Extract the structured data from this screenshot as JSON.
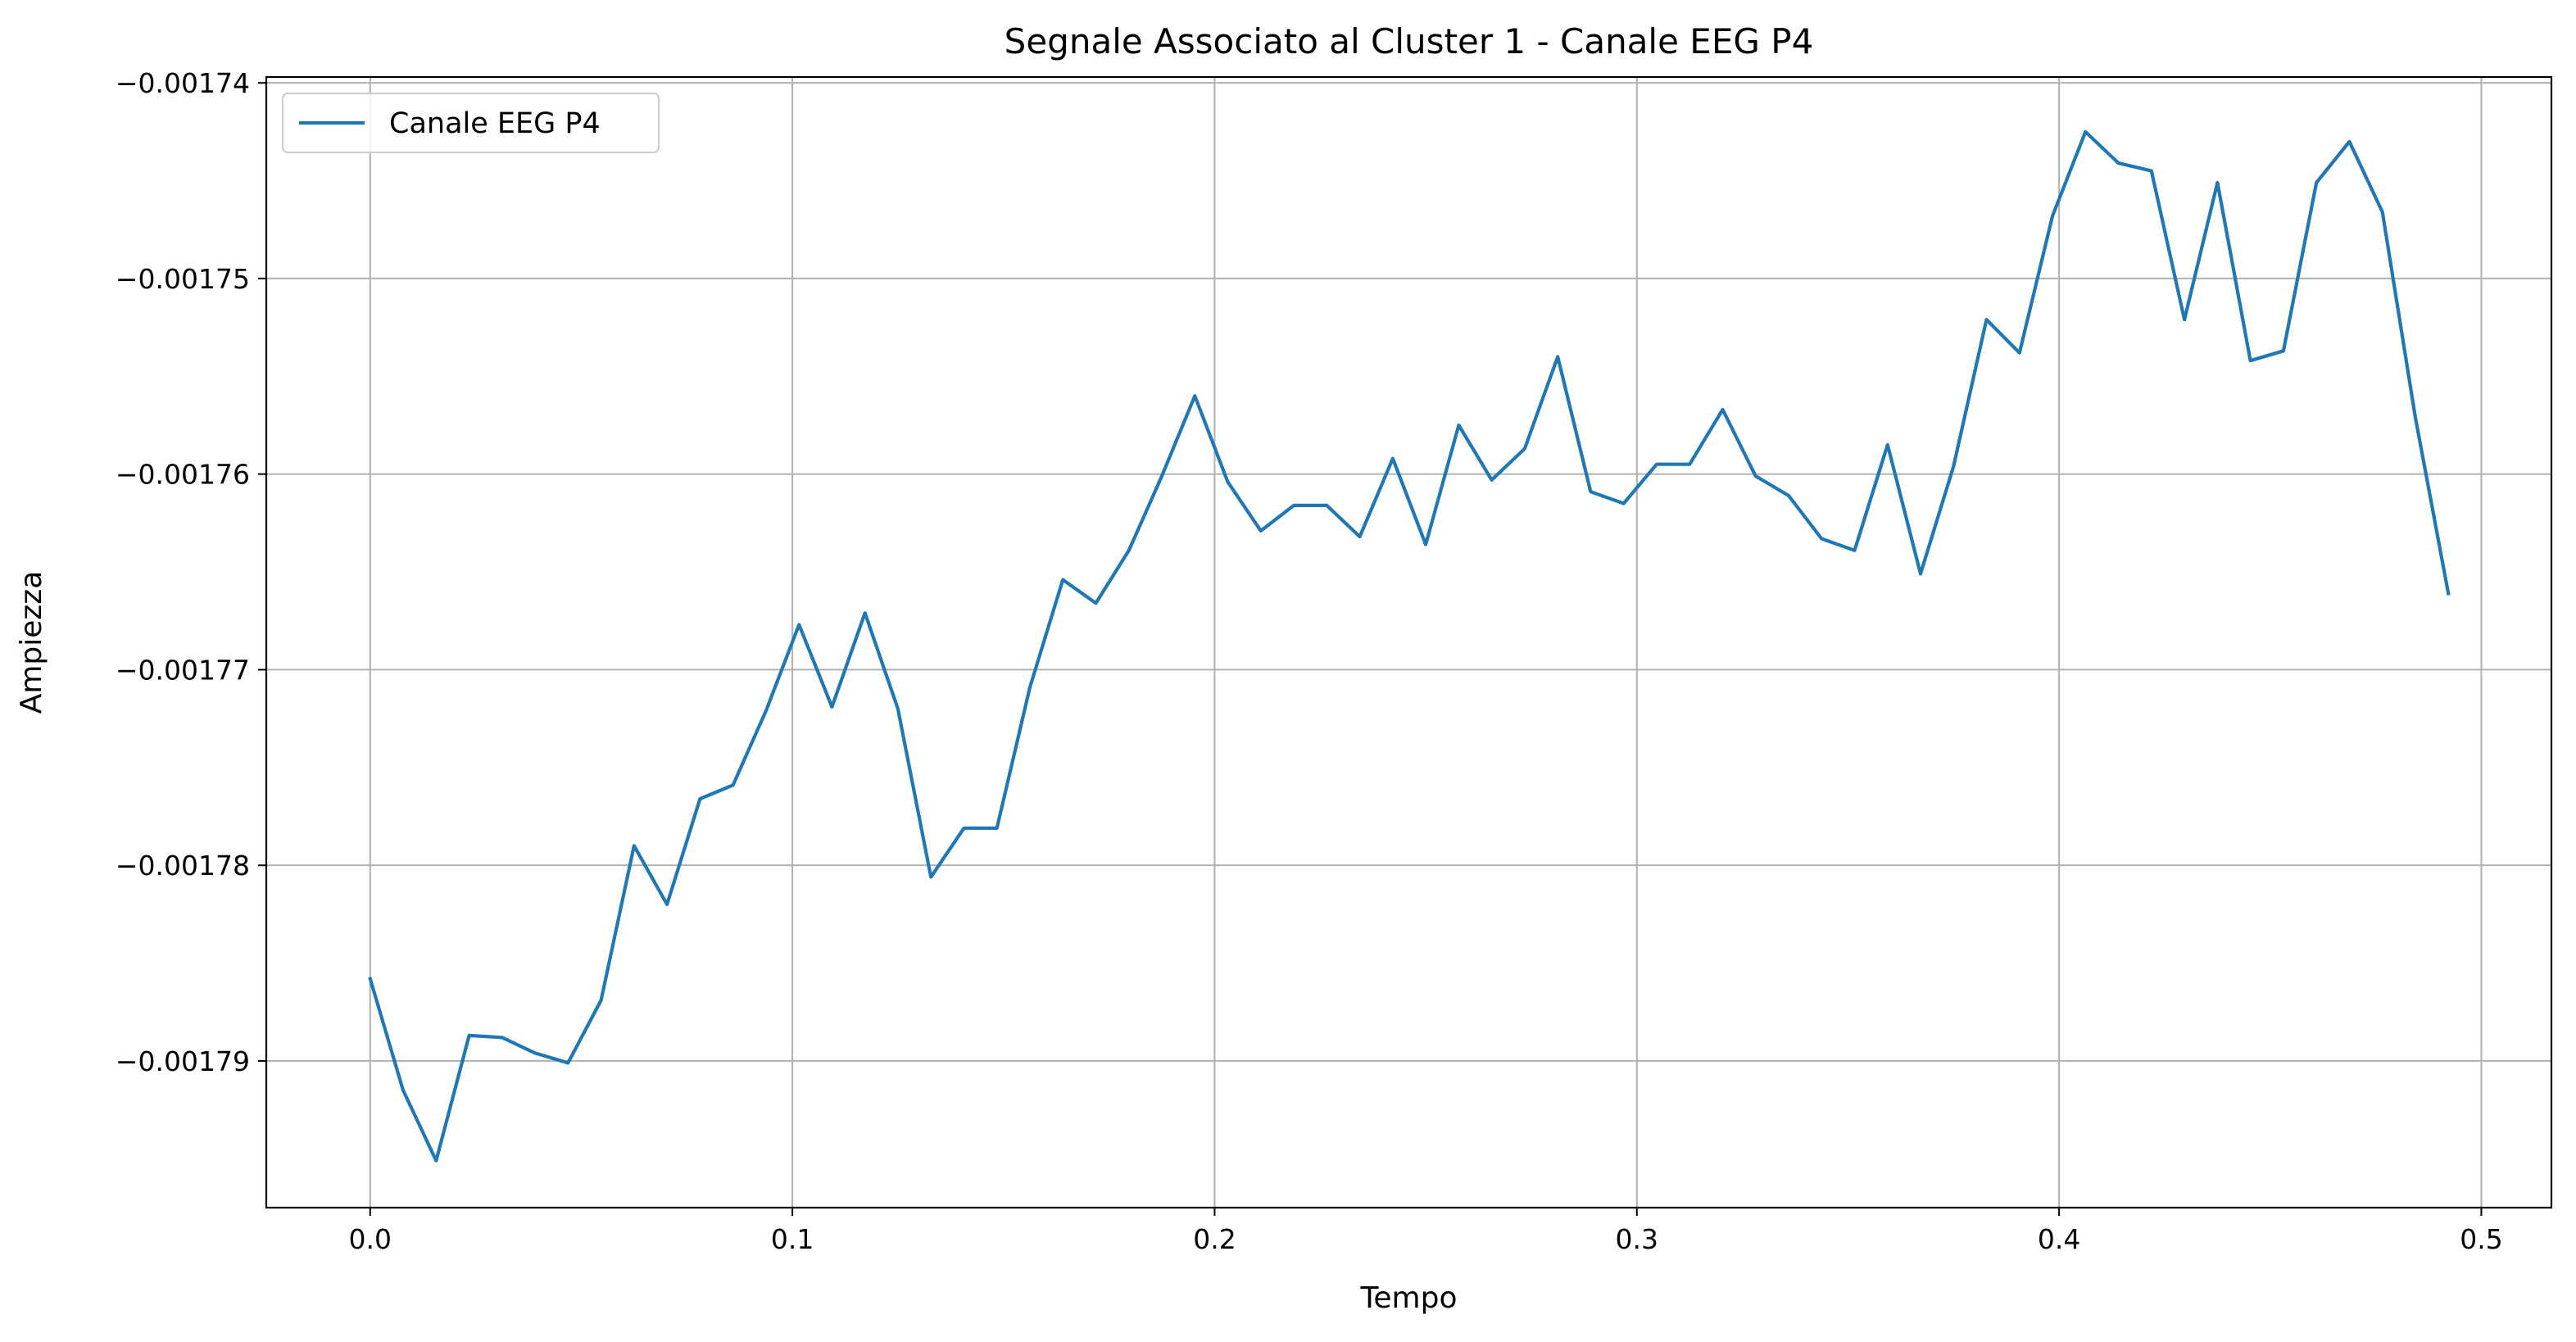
{
  "chart_data": {
    "type": "line",
    "title": "Segnale Associato al Cluster 1 - Canale EEG P4",
    "xlabel": "Tempo",
    "ylabel": "Ampiezza",
    "xlim": [
      -0.0246,
      0.5166
    ],
    "ylim": [
      -0.0017975,
      -0.0017397
    ],
    "grid": true,
    "legend_position": "top-left",
    "x_ticks": [
      0.0,
      0.1,
      0.2,
      0.3,
      0.4,
      0.5
    ],
    "x_tick_labels": [
      "0.0",
      "0.1",
      "0.2",
      "0.3",
      "0.4",
      "0.5"
    ],
    "y_ticks": [
      -0.00174,
      -0.00175,
      -0.00176,
      -0.00177,
      -0.00178,
      -0.00179
    ],
    "y_tick_labels": [
      "−0.00174",
      "−0.00175",
      "−0.00176",
      "−0.00177",
      "−0.00178",
      "−0.00179"
    ],
    "series": [
      {
        "name": "Canale EEG P4",
        "color": "#1f77b4",
        "x": [
          0.0,
          0.0078125,
          0.015625,
          0.0234375,
          0.03125,
          0.0390625,
          0.046875,
          0.0546875,
          0.0625,
          0.0703125,
          0.078125,
          0.0859375,
          0.09375,
          0.1015625,
          0.109375,
          0.1171875,
          0.125,
          0.1328125,
          0.140625,
          0.1484375,
          0.15625,
          0.1640625,
          0.171875,
          0.1796875,
          0.1875,
          0.1953125,
          0.203125,
          0.2109375,
          0.21875,
          0.2265625,
          0.234375,
          0.2421875,
          0.25,
          0.2578125,
          0.265625,
          0.2734375,
          0.28125,
          0.2890625,
          0.296875,
          0.3046875,
          0.3125,
          0.3203125,
          0.328125,
          0.3359375,
          0.34375,
          0.3515625,
          0.359375,
          0.3671875,
          0.375,
          0.3828125,
          0.390625,
          0.3984375,
          0.40625,
          0.4140625,
          0.421875,
          0.4296875,
          0.4375,
          0.4453125,
          0.453125,
          0.4609375,
          0.46875,
          0.4765625,
          0.484375,
          0.4921875
        ],
        "values": [
          -0.0017858,
          -0.0017915,
          -0.0017951,
          -0.0017887,
          -0.0017888,
          -0.0017896,
          -0.0017901,
          -0.0017869,
          -0.001779,
          -0.001782,
          -0.0017766,
          -0.0017759,
          -0.0017721,
          -0.0017677,
          -0.0017719,
          -0.0017671,
          -0.001772,
          -0.0017806,
          -0.0017781,
          -0.0017781,
          -0.0017709,
          -0.0017654,
          -0.0017666,
          -0.0017639,
          -0.0017601,
          -0.001756,
          -0.0017604,
          -0.0017629,
          -0.0017616,
          -0.0017616,
          -0.0017632,
          -0.0017592,
          -0.0017636,
          -0.0017575,
          -0.0017603,
          -0.0017587,
          -0.001754,
          -0.0017609,
          -0.0017615,
          -0.0017595,
          -0.0017595,
          -0.0017567,
          -0.0017601,
          -0.0017611,
          -0.0017633,
          -0.0017639,
          -0.0017585,
          -0.0017651,
          -0.0017596,
          -0.0017521,
          -0.0017538,
          -0.0017468,
          -0.0017425,
          -0.0017441,
          -0.0017445,
          -0.0017521,
          -0.0017451,
          -0.0017542,
          -0.0017537,
          -0.0017451,
          -0.001743,
          -0.0017466,
          -0.0017571,
          -0.0017661
        ]
      }
    ]
  }
}
